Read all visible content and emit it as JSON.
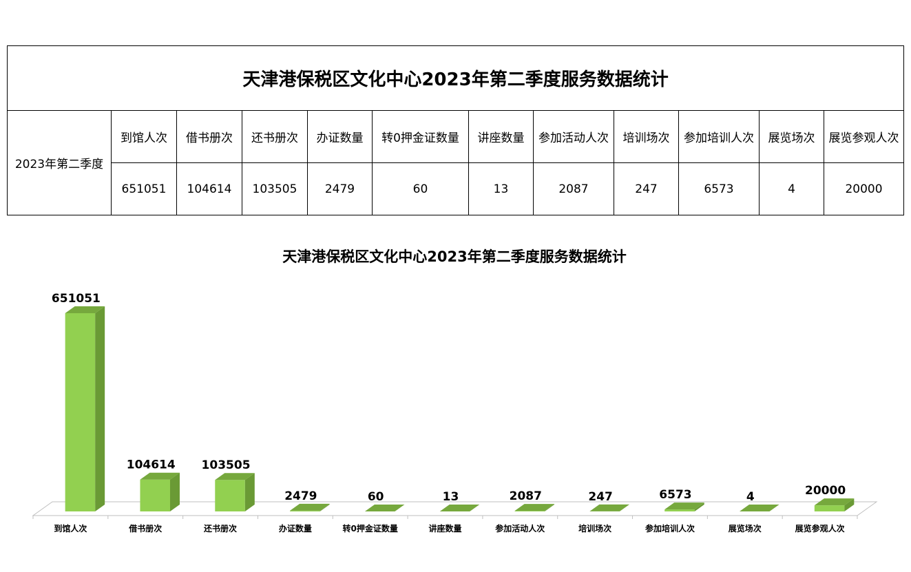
{
  "table": {
    "title": "天津港保税区文化中心2023年第二季度服务数据统计",
    "row_header": "2023年第二季度",
    "headers": [
      "到馆人次",
      "借书册次",
      "还书册次",
      "办证数量",
      "转0押金证数量",
      "讲座数量",
      "参加活动人次",
      "培训场次",
      "参加培训人次",
      "展览场次",
      "展览参观人次"
    ],
    "values": [
      "651051",
      "104614",
      "103505",
      "2479",
      "60",
      "13",
      "2087",
      "247",
      "6573",
      "4",
      "20000"
    ]
  },
  "chart_data": {
    "type": "bar",
    "title": "天津港保税区文化中心2023年第二季度服务数据统计",
    "categories": [
      "到馆人次",
      "借书册次",
      "还书册次",
      "办证数量",
      "转0押金证数量",
      "讲座数量",
      "参加活动人次",
      "培训场次",
      "参加培训人次",
      "展览场次",
      "展览参观人次"
    ],
    "values": [
      651051,
      104614,
      103505,
      2479,
      60,
      13,
      2087,
      247,
      6573,
      4,
      20000
    ],
    "xlabel": "",
    "ylabel": "",
    "ylim": [
      0,
      651051
    ],
    "style": "3d",
    "grid": false,
    "legend": "none",
    "colors": {
      "front": "#92d050",
      "side": "#6a9a35",
      "top": "#76a83d",
      "floor": "#bfbfbf"
    }
  }
}
